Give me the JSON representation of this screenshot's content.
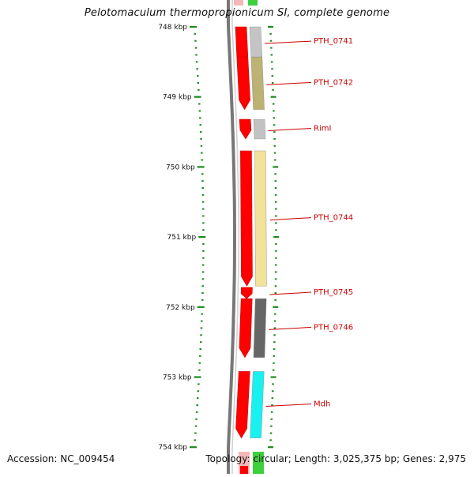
{
  "title": "Pelotomaculum thermopropionicum SI, complete genome",
  "footer": {
    "accession": "Accession: NC_009454",
    "topology": "Topology: circular; Length: 3,025,375 bp; Genes: 2,975"
  },
  "scale": {
    "unit_suffix": " kbp",
    "start_kbp": 748,
    "end_kbp": 754,
    "major_ticks_kbp": [
      748,
      749,
      750,
      751,
      752,
      753,
      754
    ],
    "minor_tick_step_kbp": 0.1
  },
  "colors": {
    "tick": "#1a8a1a",
    "arrow": "#ff0000",
    "backbone": "#777777",
    "label": "#cc0000",
    "strand_top_red": "#f4b8b8",
    "strand_top_green": "#3ecf3e"
  },
  "genes": [
    {
      "label": "PTH_0741",
      "start_kbp": 748.0,
      "end_kbp": 748.43,
      "color": "#c4c4c4",
      "arrow_tip": false
    },
    {
      "label": "PTH_0742",
      "start_kbp": 748.43,
      "end_kbp": 749.18,
      "color": "#bcb273",
      "arrow_tip": true
    },
    {
      "label": "RimI",
      "start_kbp": 749.32,
      "end_kbp": 749.6,
      "color": "#c2c2c2",
      "arrow_tip": true
    },
    {
      "label": "PTH_0744",
      "start_kbp": 749.77,
      "end_kbp": 751.7,
      "color": "#f2e29a",
      "arrow_tip": true
    },
    {
      "label": "PTH_0745",
      "start_kbp": 751.72,
      "end_kbp": 751.88,
      "color": "#ffffff",
      "arrow_tip": true
    },
    {
      "label": "PTH_0746",
      "start_kbp": 751.88,
      "end_kbp": 752.72,
      "color": "#666666",
      "arrow_tip": true
    },
    {
      "label": "Mdh",
      "start_kbp": 752.92,
      "end_kbp": 753.87,
      "color": "#19f0f0",
      "arrow_tip": true
    }
  ]
}
